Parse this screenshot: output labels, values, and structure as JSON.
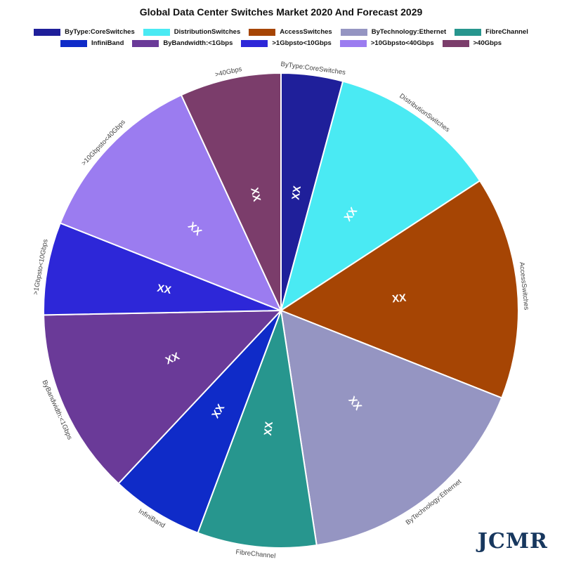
{
  "title": "Global Data Center Switches Market 2020 And Forecast 2029",
  "watermark": "JCMR",
  "legend": [
    {
      "label": "ByType:CoreSwitches",
      "color": "#1f1f9a"
    },
    {
      "label": "DistributionSwitches",
      "color": "#4aeaf3"
    },
    {
      "label": "AccessSwitches",
      "color": "#a64504"
    },
    {
      "label": "ByTechnology:Ethernet",
      "color": "#9595c2"
    },
    {
      "label": "FibreChannel",
      "color": "#27968e"
    },
    {
      "label": "InfiniBand",
      "color": "#0f2bc8"
    },
    {
      "label": "ByBandwidth:<1Gbps",
      "color": "#6a3a98"
    },
    {
      "label": ">1Gbpsto<10Gbps",
      "color": "#2d27d8"
    },
    {
      "label": ">10Gbpsto<40Gbps",
      "color": "#9b7cf0"
    },
    {
      "label": ">40Gbps",
      "color": "#7b3d6b"
    }
  ],
  "chart_data": {
    "type": "pie",
    "title": "Global Data Center Switches Market 2020 And Forecast 2029",
    "legend_position": "top",
    "slices": [
      {
        "label": "ByType:CoreSwitches",
        "value": 4.2,
        "data_label": "XX",
        "color": "#1f1f9a"
      },
      {
        "label": "DistributionSwitches",
        "value": 11.6,
        "data_label": "XX",
        "color": "#4aeaf3"
      },
      {
        "label": "AccessSwitches",
        "value": 15.2,
        "data_label": "XX",
        "color": "#a64504"
      },
      {
        "label": "ByTechnology:Ethernet",
        "value": 16.6,
        "data_label": "XX",
        "color": "#9595c2"
      },
      {
        "label": "FibreChannel",
        "value": 8.1,
        "data_label": "XX",
        "color": "#27968e"
      },
      {
        "label": "InfiniBand",
        "value": 6.3,
        "data_label": "XX",
        "color": "#0f2bc8"
      },
      {
        "label": "ByBandwidth:<1Gbps",
        "value": 12.7,
        "data_label": "XX",
        "color": "#6a3a98"
      },
      {
        "label": ">1Gbpsto<10Gbps",
        "value": 6.3,
        "data_label": "XX",
        "color": "#2d27d8"
      },
      {
        "label": ">10Gbpsto<40Gbps",
        "value": 12.1,
        "data_label": "XX",
        "color": "#9b7cf0"
      },
      {
        "label": ">40Gbps",
        "value": 6.9,
        "data_label": "XX",
        "color": "#7b3d6b"
      }
    ]
  }
}
